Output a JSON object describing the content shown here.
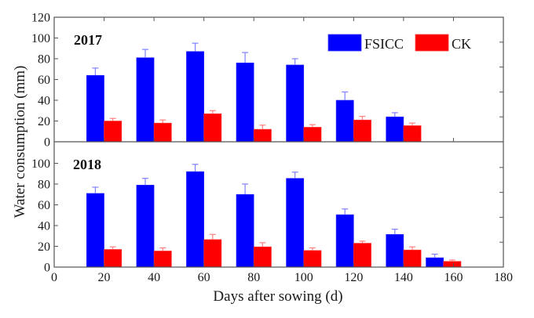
{
  "chart_data": {
    "type": "bar",
    "xlabel": "Days after sowing (d)",
    "ylabel": "Water consumption (mm)",
    "xlim": [
      0,
      180
    ],
    "x_ticks": [
      0,
      20,
      40,
      60,
      80,
      100,
      120,
      140,
      160,
      180
    ],
    "legend": {
      "position": "top-right",
      "entries": [
        {
          "name": "FSICC",
          "color": "#0000ff"
        },
        {
          "name": "CK",
          "color": "#ff0000"
        }
      ]
    },
    "error_bars": true,
    "panels": [
      {
        "label": "2017",
        "ylim": [
          0,
          120
        ],
        "y_ticks": [
          0,
          20,
          40,
          60,
          80,
          100,
          120
        ],
        "groups": [
          20,
          40,
          60,
          80,
          100,
          120,
          140
        ],
        "series": [
          {
            "name": "FSICC",
            "values": [
              64,
              81,
              87,
              76,
              74,
              40,
              24
            ],
            "errors": [
              7,
              8,
              8,
              10,
              6,
              8,
              4
            ]
          },
          {
            "name": "CK",
            "values": [
              20,
              18,
              27,
              12,
              14,
              21,
              15.5
            ],
            "errors": [
              2.5,
              3,
              3,
              4,
              2.5,
              3.5,
              2.5
            ]
          }
        ]
      },
      {
        "label": "2018",
        "ylim": [
          0,
          120
        ],
        "y_ticks": [
          0,
          20,
          40,
          60,
          80,
          100
        ],
        "groups": [
          20,
          40,
          60,
          80,
          100,
          120,
          140,
          156
        ],
        "series": [
          {
            "name": "FSICC",
            "values": [
              71,
              79,
              92,
              70,
              85.5,
              50.5,
              31.5,
              9
            ],
            "errors": [
              6,
              6.5,
              7,
              10,
              6,
              5.5,
              5,
              3.5
            ]
          },
          {
            "name": "CK",
            "values": [
              17,
              15.5,
              26.5,
              19.5,
              16,
              23,
              16.5,
              5.5
            ],
            "errors": [
              2.5,
              3,
              5,
              4,
              2.5,
              2,
              3,
              1.3
            ]
          }
        ]
      }
    ]
  }
}
